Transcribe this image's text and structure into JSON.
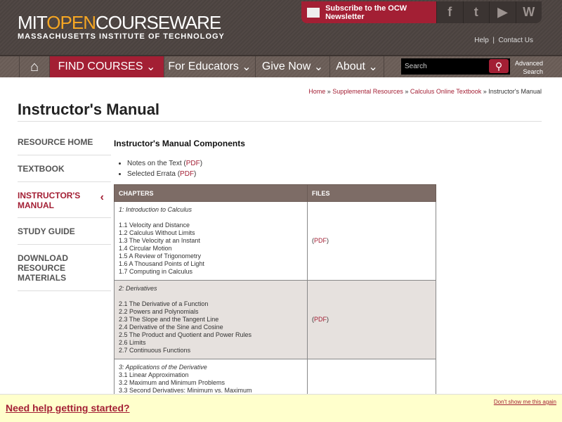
{
  "header": {
    "logo_mit": "MIT",
    "logo_open": "OPEN",
    "logo_cw": "COURSEWARE",
    "logo_sub": "MASSACHUSETTS INSTITUTE OF TECHNOLOGY",
    "subscribe": "Subscribe to the OCW Newsletter",
    "help": "Help",
    "contact": "Contact Us"
  },
  "nav": {
    "items": [
      "FIND COURSES",
      "For Educators",
      "Give Now",
      "About"
    ],
    "search_placeholder": "Search",
    "advanced1": "Advanced",
    "advanced2": "Search"
  },
  "breadcrumb": [
    "Home",
    "Supplemental Resources",
    "Calculus Online Textbook",
    "Instructor's Manual"
  ],
  "title": "Instructor's Manual",
  "sidebar": [
    "RESOURCE HOME",
    "TEXTBOOK",
    "INSTRUCTOR'S MANUAL",
    "STUDY GUIDE",
    "DOWNLOAD RESOURCE MATERIALS"
  ],
  "content": {
    "heading": "Instructor's Manual Components",
    "bullets": [
      "Notes on the Text",
      "Selected Errata"
    ],
    "pdf": "PDF"
  },
  "table": {
    "headers": [
      "CHAPTERS",
      "FILES"
    ],
    "rows": [
      {
        "chapter": "1: Introduction to Calculus",
        "sections": [
          "1.1 Velocity and Distance",
          "1.2 Calculus Without Limits",
          "1.3 The Velocity at an Instant",
          "1.4 Circular Motion",
          "1.5 A Review of Trigonometry",
          "1.6 A Thousand Points of Light",
          "1.7 Computing in Calculus"
        ],
        "file": "PDF"
      },
      {
        "chapter": "2: Derivatives",
        "sections": [
          "2.1 The Derivative of a Function",
          "2.2 Powers and Polynomials",
          "2.3 The Slope and the Tangent Line",
          "2.4 Derivative of the Sine and Cosine",
          "2.5 The Product and Quotient and Power Rules",
          "2.6 Limits",
          "2.7 Continuous Functions"
        ],
        "file": "PDF"
      },
      {
        "chapter": "3: Applications of the Derivative",
        "sections": [
          "3.1 Linear Approximation",
          "3.2 Maximum and Minimum Problems",
          "3.3 Second Derivatives: Minimum vs. Maximum"
        ],
        "file": ""
      }
    ]
  },
  "banner": {
    "help": "Need help getting started?",
    "dont": "Don't show me this again"
  }
}
